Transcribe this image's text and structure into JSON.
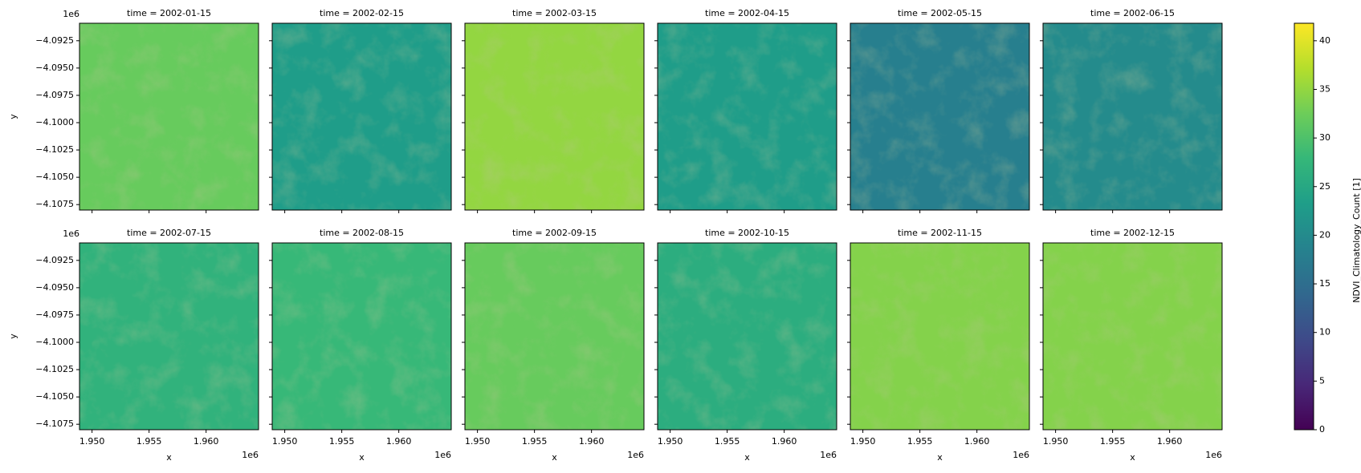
{
  "chart_data": {
    "type": "image-facets",
    "colormap": "viridis",
    "panels": [
      "time = 2002-01-15",
      "time = 2002-02-15",
      "time = 2002-03-15",
      "time = 2002-04-15",
      "time = 2002-05-15",
      "time = 2002-06-15",
      "time = 2002-07-15",
      "time = 2002-08-15",
      "time = 2002-09-15",
      "time = 2002-10-15",
      "time = 2002-11-15",
      "time = 2002-12-15"
    ],
    "values": [
      32,
      23,
      35,
      23,
      18,
      20,
      27,
      28,
      32,
      26,
      34,
      34
    ],
    "columns": 6,
    "x_label": "x",
    "y_label": "y",
    "x_offset_label": "1e6",
    "y_offset_label": "1e6",
    "xlim": [
      1948900,
      1964600
    ],
    "ylim": [
      -4108000,
      -4090900
    ],
    "xticks": [
      {
        "value": 1950000,
        "label": "1.950"
      },
      {
        "value": 1955000,
        "label": "1.955"
      },
      {
        "value": 1960000,
        "label": "1.960"
      }
    ],
    "yticks": [
      {
        "value": -4092500,
        "label": "−4.0925"
      },
      {
        "value": -4095000,
        "label": "−4.0950"
      },
      {
        "value": -4097500,
        "label": "−4.0975"
      },
      {
        "value": -4100000,
        "label": "−4.1000"
      },
      {
        "value": -4102500,
        "label": "−4.1025"
      },
      {
        "value": -4105000,
        "label": "−4.1050"
      },
      {
        "value": -4107500,
        "label": "−4.1075"
      }
    ],
    "colorbar_label": "NDVI_Climatology_Count [1]",
    "clim": [
      0,
      41.8
    ],
    "colorbar_ticks": [
      0,
      5,
      10,
      15,
      20,
      25,
      30,
      35,
      40
    ]
  }
}
